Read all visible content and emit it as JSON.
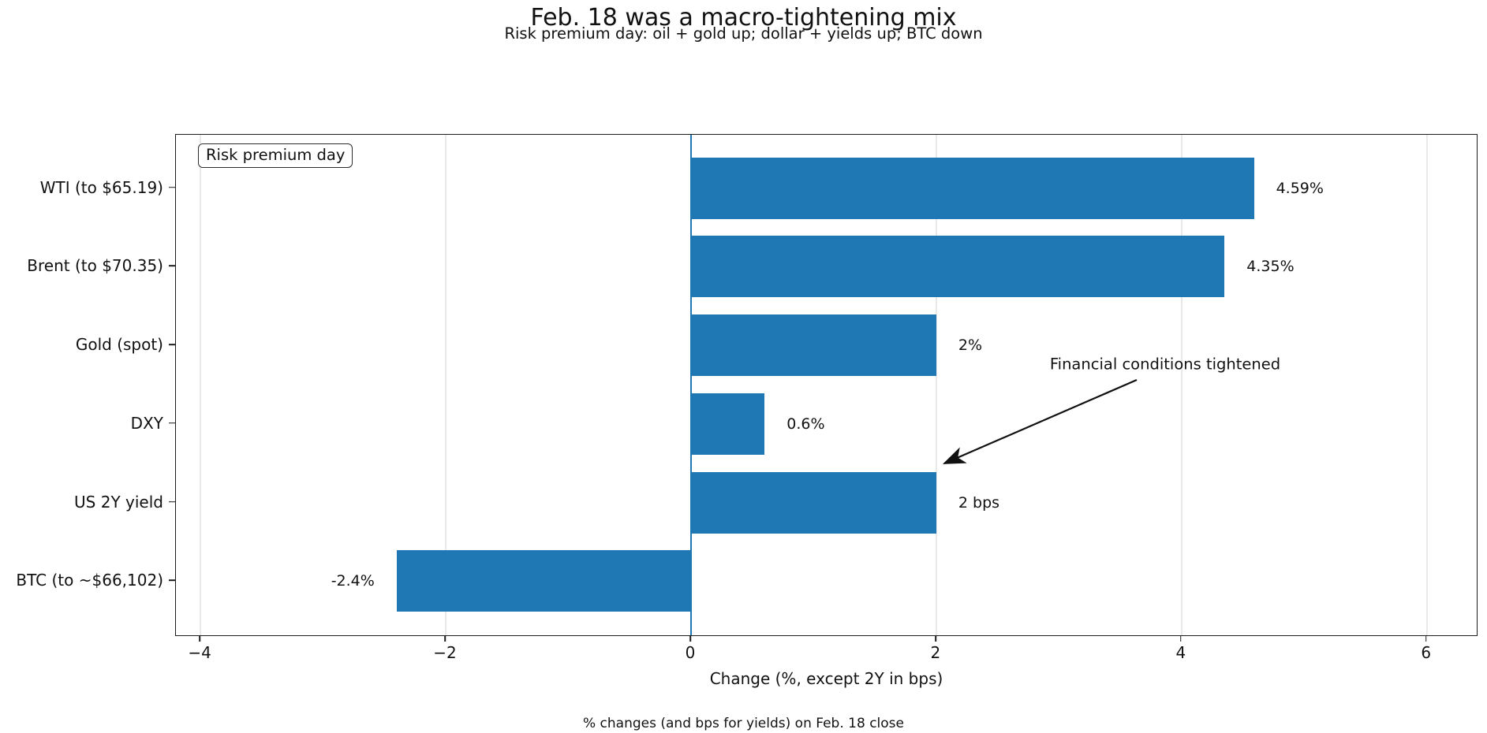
{
  "chart_data": {
    "type": "bar",
    "orientation": "horizontal",
    "title": "Feb. 18 was a macro-tightening mix",
    "subtitle": "Risk premium day: oil + gold up; dollar + yields up; BTC down",
    "categories": [
      "WTI (to $65.19)",
      "Brent (to $70.35)",
      "Gold (spot)",
      "DXY",
      "US 2Y yield",
      "BTC (to ~$66,102)"
    ],
    "values": [
      4.59,
      4.35,
      2.0,
      0.6,
      2.0,
      -2.4
    ],
    "bar_labels": [
      "4.59%",
      "4.35%",
      "2%",
      "0.6%",
      "2 bps",
      "-2.4%"
    ],
    "xlabel": "Change (%, except 2Y in bps)",
    "caption": "% changes (and bps for yields) on Feb. 18 close",
    "xlim": [
      -4.2,
      6.4
    ],
    "xticks": [
      -4,
      -2,
      0,
      2,
      4,
      6
    ],
    "xtick_labels": [
      "−4",
      "−2",
      "0",
      "2",
      "4",
      "6"
    ],
    "legend_label": "Risk premium day",
    "annotation": {
      "text": "Financial conditions tightened"
    },
    "grid": true,
    "legend_position": "upper-left",
    "bar_color": "#1f77b4",
    "zero_line_color": "#1f77b4",
    "grid_color": "#e9e9e9"
  }
}
